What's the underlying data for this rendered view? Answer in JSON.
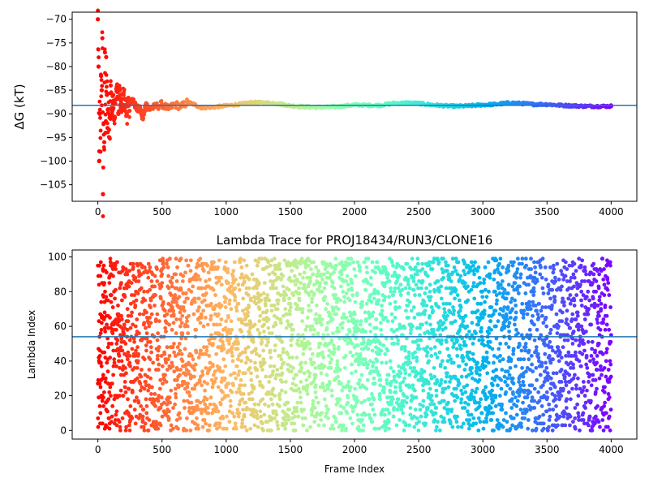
{
  "chart_data": [
    {
      "type": "scatter",
      "title": "",
      "xlabel": "",
      "ylabel": "ΔG (kT)",
      "xlim": [
        -200,
        4200
      ],
      "ylim": [
        -108.5,
        -68.5
      ],
      "xticks": [
        0,
        500,
        1000,
        1500,
        2000,
        2500,
        3000,
        3500,
        4000
      ],
      "yticks": [
        -105,
        -100,
        -95,
        -90,
        -85,
        -80,
        -75,
        -70
      ],
      "hline": -88.2,
      "hline_color": "#1f77b4",
      "colormap": "rainbow (red at early frames → violet at late frames)",
      "series": [
        {
          "x": [
            0,
            5,
            10,
            15,
            20,
            25,
            30,
            35,
            40,
            45,
            50,
            55,
            60,
            65,
            70,
            75,
            80,
            90,
            100,
            110,
            120,
            130,
            140,
            150,
            160,
            170,
            180,
            190,
            200,
            225,
            250,
            275,
            300,
            325,
            350,
            375,
            400,
            450,
            500,
            550,
            600,
            650,
            700,
            750,
            800,
            900,
            1000,
            1100,
            1200,
            1300,
            1400,
            1500,
            1600,
            1700,
            1800,
            1900,
            2000,
            2100,
            2200,
            2300,
            2400,
            2500,
            2600,
            2700,
            2800,
            2900,
            3000,
            3100,
            3200,
            3300,
            3400,
            3500,
            3600,
            3700,
            3800,
            3900,
            4000
          ],
          "y": [
            -70,
            -80,
            -100,
            -90,
            -98,
            -82,
            -85,
            -74,
            -107,
            -92,
            -96,
            -77,
            -94,
            -78,
            -86,
            -93,
            -89,
            -95,
            -84,
            -90,
            -86,
            -91,
            -87,
            -84,
            -90,
            -85,
            -89,
            -88,
            -86,
            -90,
            -88,
            -87,
            -89,
            -88.5,
            -91,
            -88,
            -89,
            -88.5,
            -88,
            -89,
            -88,
            -88.5,
            -87.5,
            -88,
            -88.7,
            -88.6,
            -88.3,
            -88,
            -87.6,
            -87.7,
            -87.8,
            -88.3,
            -88.5,
            -88.6,
            -88.6,
            -88.4,
            -88.1,
            -88.2,
            -88.2,
            -87.8,
            -87.7,
            -87.8,
            -88.1,
            -88.3,
            -88.4,
            -88.3,
            -88.1,
            -88.0,
            -87.7,
            -87.8,
            -88.0,
            -88.0,
            -88.2,
            -88.3,
            -88.4,
            -88.4,
            -88.4
          ]
        }
      ]
    },
    {
      "type": "scatter",
      "title": "Lambda Trace for PROJ18434/RUN3/CLONE16",
      "xlabel": "Frame Index",
      "ylabel": "Lambda Index",
      "xlim": [
        -200,
        4200
      ],
      "ylim": [
        -5,
        104
      ],
      "xticks": [
        0,
        500,
        1000,
        1500,
        2000,
        2500,
        3000,
        3500,
        4000
      ],
      "yticks": [
        0,
        20,
        40,
        60,
        80,
        100
      ],
      "hline": 54,
      "hline_color": "#1f77b4",
      "colormap": "rainbow (red at early frames → violet at late frames)",
      "point_count": 4000,
      "series": [
        {
          "x": [
            0,
            10,
            20,
            30,
            40,
            50,
            60,
            80,
            100,
            150,
            200,
            250,
            300,
            400,
            500,
            600,
            700,
            800,
            1000,
            1200,
            1400,
            1600,
            1800,
            2000,
            2200,
            2400,
            2600,
            2800,
            3000,
            3200,
            3400,
            3600,
            3800,
            4000
          ],
          "y": [
            95,
            40,
            10,
            62,
            30,
            85,
            2,
            48,
            20,
            97,
            55,
            5,
            75,
            35,
            90,
            15,
            60,
            82,
            25,
            45,
            70,
            3,
            95,
            18,
            50,
            88,
            30,
            8,
            65,
            40,
            97,
            22,
            76,
            55
          ]
        }
      ]
    }
  ]
}
